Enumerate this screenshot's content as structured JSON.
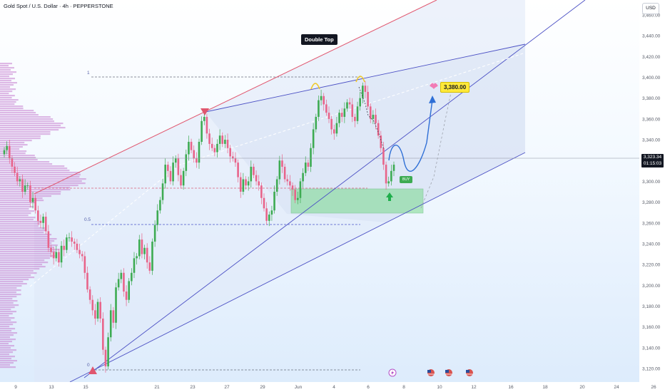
{
  "header": {
    "symbol_title": "Gold Spot / U.S. Dollar · 4h · PEPPERSTONE",
    "currency_button": "USD"
  },
  "annotations": {
    "double_top": "Double Top",
    "target": "3,380.00",
    "buy": "BUY",
    "fib_1": "1",
    "fib_05": "0.5",
    "fib_0": "0"
  },
  "current_price": {
    "value": "3,323.34",
    "countdown": "01:15:03"
  },
  "colors": {
    "bull": "#3dab52",
    "bear": "#e8648a",
    "channel_upper": "#e0566e",
    "channel_line": "#4a4fc4",
    "zone": "#7ad98c",
    "projection": "#2f6fd6",
    "profile": "#c77fd0"
  },
  "icons": [
    "down-triangle-icon",
    "up-triangle-icon",
    "up-arrow-icon",
    "heart-icon",
    "lightning-icon",
    "us-flag-icon"
  ],
  "chart_data": {
    "type": "candlestick",
    "title": "Gold Spot / U.S. Dollar · 4h · PEPPERSTONE",
    "y_ticks": [
      3460,
      3440,
      3420,
      3400,
      3380,
      3360,
      3340,
      3320,
      3300,
      3280,
      3260,
      3240,
      3220,
      3200,
      3180,
      3160,
      3140,
      3120
    ],
    "y_tick_labels": [
      "3,460.00",
      "3,440.00",
      "3,420.00",
      "3,400.00",
      "3,380.00",
      "3,360.00",
      "3,340.00",
      "3,320.00",
      "3,300.00",
      "3,280.00",
      "3,260.00",
      "3,240.00",
      "3,220.00",
      "3,200.00",
      "3,180.00",
      "3,160.00",
      "3,140.00",
      "3,120.00"
    ],
    "x_tick_labels": [
      "9",
      "13",
      "15",
      "21",
      "23",
      "27",
      "29",
      "Jun",
      "4",
      "6",
      "8",
      "10",
      "12",
      "16",
      "18",
      "20",
      "24",
      "26"
    ],
    "ylim": [
      3112,
      3466
    ],
    "current_price": 3323.34,
    "target_price": 3380.0,
    "demand_zone": [
      3274,
      3294
    ],
    "fib_levels": {
      "1": 3401,
      "0.5": 3260,
      "0": 3120
    },
    "candles_close_path": [
      3330,
      3334,
      3322,
      3314,
      3308,
      3300,
      3302,
      3290,
      3296,
      3296,
      3280,
      3284,
      3272,
      3262,
      3260,
      3266,
      3252,
      3236,
      3232,
      3226,
      3232,
      3222,
      3238,
      3234,
      3246,
      3246,
      3242,
      3240,
      3234,
      3230,
      3228,
      3212,
      3196,
      3186,
      3176,
      3168,
      3184,
      3168,
      3138,
      3122,
      3150,
      3176,
      3164,
      3198,
      3206,
      3212,
      3194,
      3186,
      3204,
      3212,
      3226,
      3228,
      3244,
      3230,
      3236,
      3222,
      3214,
      3242,
      3258,
      3272,
      3282,
      3298,
      3316,
      3310,
      3300,
      3318,
      3322,
      3306,
      3296,
      3310,
      3326,
      3338,
      3330,
      3322,
      3318,
      3338,
      3358,
      3362,
      3346,
      3336,
      3332,
      3328,
      3336,
      3344,
      3336,
      3340,
      3332,
      3324,
      3322,
      3318,
      3304,
      3290,
      3302,
      3296,
      3300,
      3314,
      3306,
      3300,
      3296,
      3284,
      3274,
      3262,
      3268,
      3272,
      3290,
      3302,
      3320,
      3314,
      3302,
      3300,
      3296,
      3292,
      3282,
      3284,
      3300,
      3308,
      3318,
      3314,
      3332,
      3350,
      3362,
      3378,
      3382,
      3374,
      3366,
      3360,
      3350,
      3346,
      3356,
      3366,
      3362,
      3370,
      3376,
      3374,
      3362,
      3358,
      3372,
      3380,
      3392,
      3386,
      3372,
      3360,
      3364,
      3356,
      3344,
      3332,
      3316,
      3298,
      3300,
      3310,
      3316
    ]
  }
}
